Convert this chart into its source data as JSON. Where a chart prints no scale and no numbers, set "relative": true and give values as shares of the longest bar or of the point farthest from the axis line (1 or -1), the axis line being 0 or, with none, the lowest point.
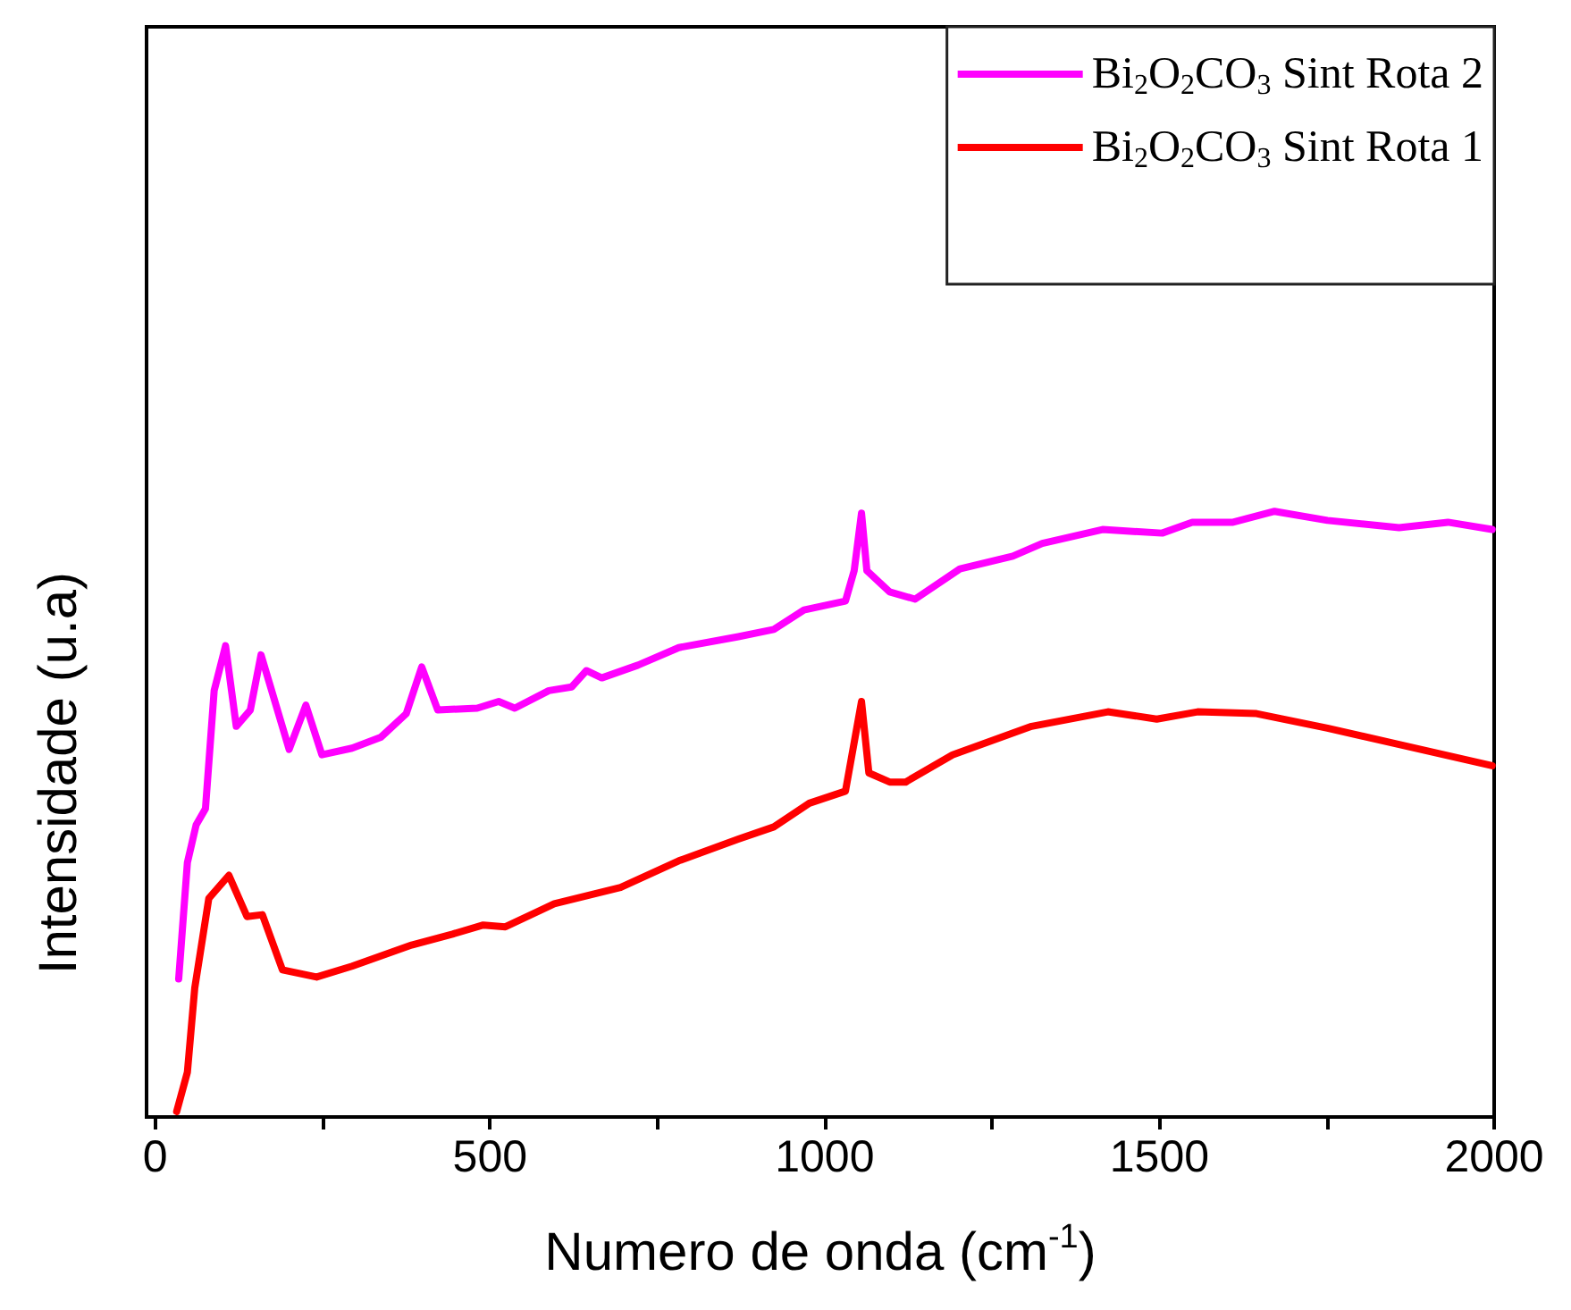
{
  "chart_data": {
    "type": "line",
    "relative": true,
    "xlabel": "Numero de onda (cm$^{-1}$)",
    "ylabel": "Intensidade (u.a)",
    "xlim": [
      -13,
      2000
    ],
    "xticks": [
      0,
      {
        "value": 250,
        "label": null
      },
      500,
      {
        "value": 750,
        "label": null
      },
      1000,
      {
        "value": 1250,
        "label": null
      },
      1500,
      {
        "value": 1750,
        "label": null
      },
      2000
    ],
    "legend": "top right",
    "grid": false,
    "marker": "none",
    "line_style": "solid",
    "series": [
      {
        "name": "Bi$_{2}$O$_{2}$CO$_{3}$ Sint Rota 2",
        "color": "#ff00ff",
        "x": [
          35,
          48,
          61,
          75,
          88,
          105,
          121,
          142,
          158,
          200,
          225,
          249,
          294,
          337,
          375,
          398,
          422,
          481,
          513,
          537,
          588,
          622,
          644,
          667,
          721,
          782,
          871,
          924,
          969,
          1031,
          1044,
          1055,
          1063,
          1097,
          1135,
          1202,
          1281,
          1325,
          1415,
          1504,
          1549,
          1610,
          1672,
          1751,
          1858,
          1931,
          1997
        ],
        "values": [
          0.228,
          0.42,
          0.482,
          0.509,
          0.704,
          0.778,
          0.645,
          0.672,
          0.763,
          0.607,
          0.68,
          0.598,
          0.609,
          0.627,
          0.666,
          0.743,
          0.672,
          0.675,
          0.686,
          0.675,
          0.704,
          0.71,
          0.737,
          0.725,
          0.746,
          0.775,
          0.793,
          0.805,
          0.837,
          0.852,
          0.902,
          0.997,
          0.902,
          0.867,
          0.855,
          0.905,
          0.926,
          0.947,
          0.97,
          0.964,
          0.982,
          0.982,
          1.0,
          0.985,
          0.973,
          0.982,
          0.97
        ]
      },
      {
        "name": "Bi$_{2}$O$_{2}$CO$_{3}$ Sint Rota 1",
        "color": "#ff0000",
        "x": [
          32,
          48,
          59,
          80,
          110,
          137,
          160,
          190,
          241,
          294,
          383,
          444,
          490,
          523,
          596,
          695,
          782,
          871,
          924,
          977,
          1031,
          1055,
          1066,
          1097,
          1121,
          1191,
          1309,
          1423,
          1496,
          1557,
          1645,
          1751,
          1858,
          1997
        ],
        "values": [
          0.009,
          0.074,
          0.213,
          0.361,
          0.399,
          0.331,
          0.334,
          0.243,
          0.231,
          0.249,
          0.284,
          0.302,
          0.317,
          0.314,
          0.352,
          0.379,
          0.423,
          0.459,
          0.479,
          0.518,
          0.538,
          0.686,
          0.568,
          0.553,
          0.553,
          0.598,
          0.645,
          0.669,
          0.657,
          0.669,
          0.666,
          0.642,
          0.615,
          0.58
        ]
      }
    ]
  }
}
